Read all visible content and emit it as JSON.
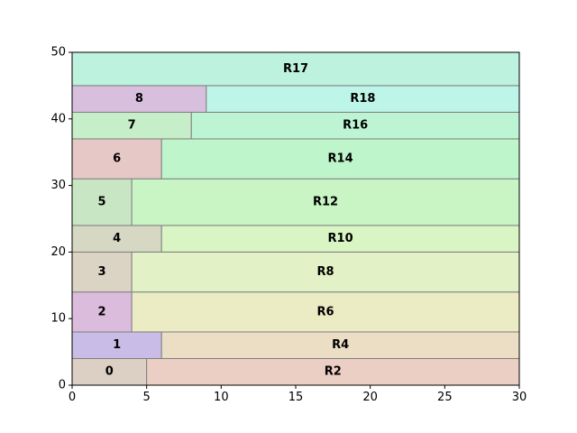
{
  "chart_data": {
    "type": "rect-partition",
    "title": "",
    "xlabel": "",
    "ylabel": "",
    "xlim": [
      0,
      30
    ],
    "ylim": [
      0,
      50
    ],
    "x_ticks": [
      0,
      5,
      10,
      15,
      20,
      25,
      30
    ],
    "y_ticks": [
      0,
      10,
      20,
      30,
      40,
      50
    ],
    "grid": false,
    "rects": [
      {
        "label": "0",
        "x0": 0,
        "x1": 5,
        "y0": 0,
        "y1": 4,
        "color": "#dcd0c4"
      },
      {
        "label": "R2",
        "x0": 5,
        "x1": 30,
        "y0": 0,
        "y1": 4,
        "color": "#eccfc4"
      },
      {
        "label": "1",
        "x0": 0,
        "x1": 6,
        "y0": 4,
        "y1": 8,
        "color": "#c9bde7"
      },
      {
        "label": "R4",
        "x0": 6,
        "x1": 30,
        "y0": 4,
        "y1": 8,
        "color": "#ecdec4"
      },
      {
        "label": "2",
        "x0": 0,
        "x1": 4,
        "y0": 8,
        "y1": 14,
        "color": "#dbbcdc"
      },
      {
        "label": "R6",
        "x0": 4,
        "x1": 30,
        "y0": 8,
        "y1": 14,
        "color": "#ebebc4"
      },
      {
        "label": "3",
        "x0": 0,
        "x1": 4,
        "y0": 14,
        "y1": 20,
        "color": "#dbd3c4"
      },
      {
        "label": "R8",
        "x0": 4,
        "x1": 30,
        "y0": 14,
        "y1": 20,
        "color": "#e3f1c6"
      },
      {
        "label": "4",
        "x0": 0,
        "x1": 6,
        "y0": 20,
        "y1": 24,
        "color": "#d6d8c4"
      },
      {
        "label": "R10",
        "x0": 6,
        "x1": 30,
        "y0": 20,
        "y1": 24,
        "color": "#d9f5c4"
      },
      {
        "label": "5",
        "x0": 0,
        "x1": 4,
        "y0": 24,
        "y1": 31,
        "color": "#c9e6c4"
      },
      {
        "label": "R12",
        "x0": 4,
        "x1": 30,
        "y0": 24,
        "y1": 31,
        "color": "#c9f5c5"
      },
      {
        "label": "6",
        "x0": 0,
        "x1": 6,
        "y0": 31,
        "y1": 37,
        "color": "#e6c8c6"
      },
      {
        "label": "R14",
        "x0": 6,
        "x1": 30,
        "y0": 31,
        "y1": 37,
        "color": "#bff5cb"
      },
      {
        "label": "7",
        "x0": 0,
        "x1": 8,
        "y0": 37,
        "y1": 41,
        "color": "#c6eec8"
      },
      {
        "label": "R16",
        "x0": 8,
        "x1": 30,
        "y0": 37,
        "y1": 41,
        "color": "#bdf5d4"
      },
      {
        "label": "8",
        "x0": 0,
        "x1": 9,
        "y0": 41,
        "y1": 45,
        "color": "#d9bfde"
      },
      {
        "label": "R18",
        "x0": 9,
        "x1": 30,
        "y0": 41,
        "y1": 45,
        "color": "#bdf5e8"
      },
      {
        "label": "R17",
        "x0": 0,
        "x1": 30,
        "y0": 45,
        "y1": 50,
        "color": "#bdf2de"
      }
    ]
  }
}
